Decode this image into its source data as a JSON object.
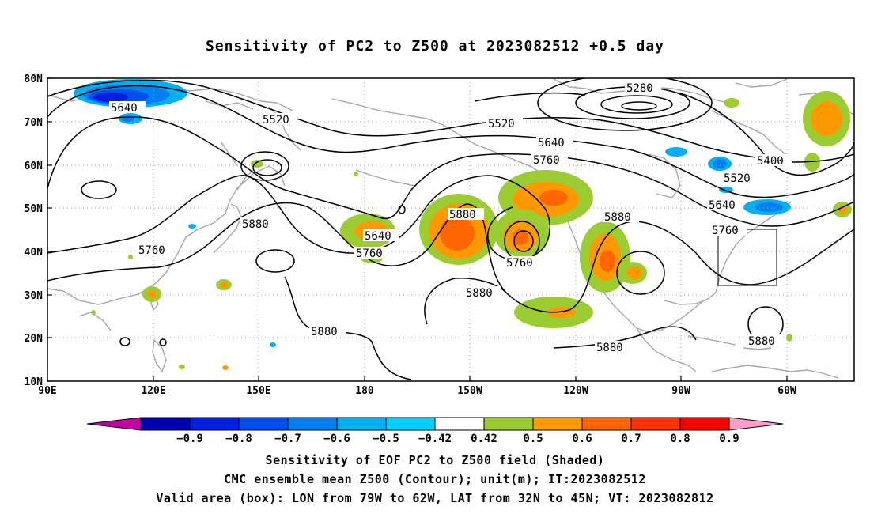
{
  "title": "Sensitivity of PC2 to Z500 at 2023082512 +0.5 day",
  "captions": [
    "Sensitivity of EOF PC2 to Z500 field (Shaded)",
    "CMC ensemble mean Z500 (Contour); unit(m); IT:2023082512",
    "Valid area (box): LON from 79W to 62W, LAT from 32N to 45N; VT: 2023082812"
  ],
  "lat_labels": [
    "80N",
    "70N",
    "60N",
    "50N",
    "40N",
    "30N",
    "20N",
    "10N"
  ],
  "lon_labels": [
    "90E",
    "120E",
    "150E",
    "180",
    "150W",
    "120W",
    "90W",
    "60W"
  ],
  "contour_labels": [
    {
      "text": "5640",
      "id": "c5640-a"
    },
    {
      "text": "5520",
      "id": "c5520-a"
    },
    {
      "text": "5280",
      "id": "c5280"
    },
    {
      "text": "5520",
      "id": "c5520-b"
    },
    {
      "text": "5640",
      "id": "c5640-b"
    },
    {
      "text": "5760",
      "id": "c5760-a"
    },
    {
      "text": "5400",
      "id": "c5400"
    },
    {
      "text": "5520",
      "id": "c5520-c"
    },
    {
      "text": "5640",
      "id": "c5640-c"
    },
    {
      "text": "5760",
      "id": "c5760-b"
    },
    {
      "text": "5880",
      "id": "c5880-a"
    },
    {
      "text": "5880",
      "id": "c5880-b"
    },
    {
      "text": "5640",
      "id": "c5640-d"
    },
    {
      "text": "5760",
      "id": "c5760-c"
    },
    {
      "text": "5760",
      "id": "c5760-d"
    },
    {
      "text": "5760",
      "id": "c5760-e"
    },
    {
      "text": "5880",
      "id": "c5880-c"
    },
    {
      "text": "5880",
      "id": "c5880-d"
    },
    {
      "text": "5880",
      "id": "c5880-e"
    },
    {
      "text": "5880",
      "id": "c5880-f"
    },
    {
      "text": "5880",
      "id": "c5880-g"
    }
  ],
  "colorbar": {
    "labels": [
      "-0.9",
      "-0.8",
      "-0.7",
      "-0.6",
      "-0.5",
      "-0.42",
      "0.42",
      "0.5",
      "0.6",
      "0.7",
      "0.8",
      "0.9"
    ],
    "colors": [
      "#c000a0",
      "#0000b0",
      "#0020e0",
      "#0050f0",
      "#0080f0",
      "#00b0f0",
      "#00d0ff",
      "#ffffff",
      "#9bcd32",
      "#ff9900",
      "#ff6600",
      "#ff3300",
      "#ff0000",
      "#ff9fc8"
    ]
  },
  "valid_box": {
    "lon_west": -79,
    "lon_east": -62,
    "lat_south": 32,
    "lat_north": 45
  }
}
